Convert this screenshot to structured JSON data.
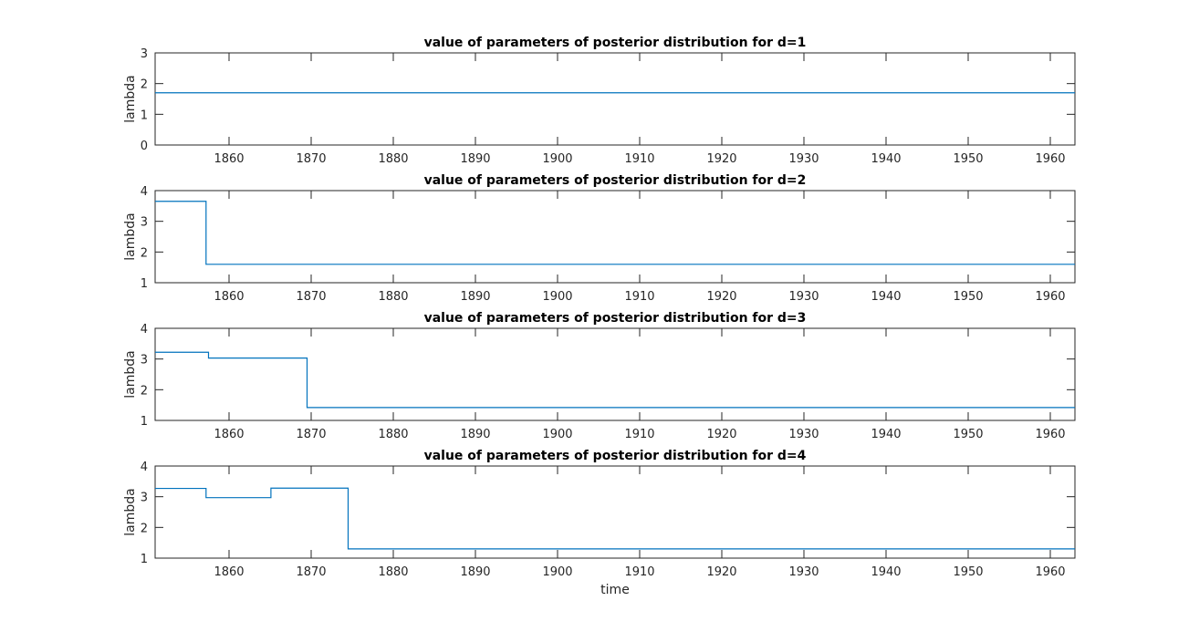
{
  "figure": {
    "background": "#ffffff",
    "axis_color": "#262626",
    "line_color": "#0072BD"
  },
  "chart_data": [
    {
      "type": "line",
      "step": true,
      "title": "value of parameters of posterior distribution for d=1",
      "xlabel": "",
      "ylabel": "lambda",
      "xlim": [
        1851,
        1963
      ],
      "ylim": [
        0,
        3
      ],
      "xticks": [
        1860,
        1870,
        1880,
        1890,
        1900,
        1910,
        1920,
        1930,
        1940,
        1950,
        1960
      ],
      "yticks": [
        0,
        1,
        2,
        3
      ],
      "grid": false,
      "series": [
        {
          "x": [
            1851,
            1963
          ],
          "y": [
            1.7,
            1.7
          ]
        }
      ]
    },
    {
      "type": "line",
      "step": true,
      "title": "value of parameters of posterior distribution for d=2",
      "xlabel": "",
      "ylabel": "lambda",
      "xlim": [
        1851,
        1963
      ],
      "ylim": [
        1,
        4
      ],
      "xticks": [
        1860,
        1870,
        1880,
        1890,
        1900,
        1910,
        1920,
        1930,
        1940,
        1950,
        1960
      ],
      "yticks": [
        1,
        2,
        3,
        4
      ],
      "grid": false,
      "series": [
        {
          "x": [
            1851,
            1857.2,
            1857.2,
            1963
          ],
          "y": [
            3.65,
            3.65,
            1.6,
            1.6
          ]
        }
      ]
    },
    {
      "type": "line",
      "step": true,
      "title": "value of parameters of posterior distribution for d=3",
      "xlabel": "",
      "ylabel": "lambda",
      "xlim": [
        1851,
        1963
      ],
      "ylim": [
        1,
        4
      ],
      "xticks": [
        1860,
        1870,
        1880,
        1890,
        1900,
        1910,
        1920,
        1930,
        1940,
        1950,
        1960
      ],
      "yticks": [
        1,
        2,
        3,
        4
      ],
      "grid": false,
      "series": [
        {
          "x": [
            1851,
            1857.5,
            1857.5,
            1869.5,
            1869.5,
            1963
          ],
          "y": [
            3.22,
            3.22,
            3.03,
            3.03,
            1.42,
            1.42
          ]
        }
      ]
    },
    {
      "type": "line",
      "step": true,
      "title": "value of parameters of posterior distribution for d=4",
      "xlabel": "time",
      "ylabel": "lambda",
      "xlim": [
        1851,
        1963
      ],
      "ylim": [
        1,
        4
      ],
      "xticks": [
        1860,
        1870,
        1880,
        1890,
        1900,
        1910,
        1920,
        1930,
        1940,
        1950,
        1960
      ],
      "yticks": [
        1,
        2,
        3,
        4
      ],
      "grid": false,
      "series": [
        {
          "x": [
            1851,
            1857.2,
            1857.2,
            1865.1,
            1865.1,
            1874.5,
            1874.5,
            1963
          ],
          "y": [
            3.27,
            3.27,
            2.97,
            2.97,
            3.28,
            3.28,
            1.3,
            1.3
          ]
        }
      ]
    }
  ]
}
